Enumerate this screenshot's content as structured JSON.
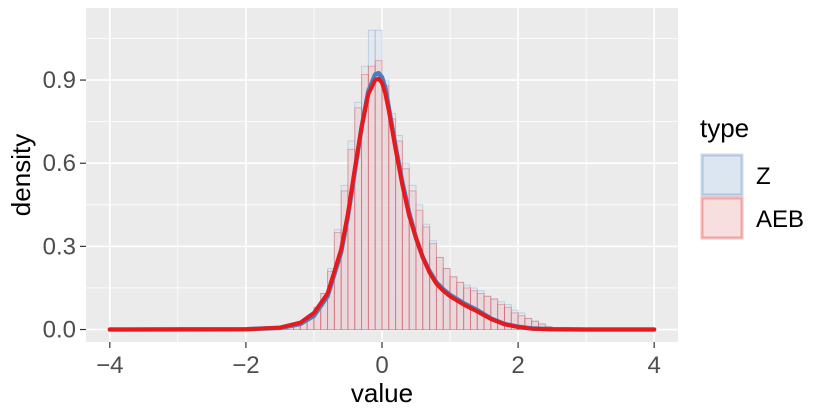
{
  "chart_data": {
    "type": "area",
    "title": "",
    "xlabel": "value",
    "ylabel": "density",
    "xlim": [
      -4.35,
      4.35
    ],
    "ylim": [
      -0.045,
      1.16
    ],
    "x_ticks": [
      -4,
      -2,
      0,
      2,
      4
    ],
    "x_tick_labels": [
      "−4",
      "−2",
      "0",
      "2",
      "4"
    ],
    "y_ticks": [
      0.0,
      0.3,
      0.6,
      0.9
    ],
    "y_tick_labels": [
      "0.0",
      "0.3",
      "0.6",
      "0.9"
    ],
    "grid": true,
    "legend": {
      "title": "type",
      "position": "right",
      "entries": [
        "Z",
        "AEB"
      ]
    },
    "colors": {
      "panel_bg": "#ebebeb",
      "grid": "#ffffff",
      "z_line": "#4a7fbf",
      "z_fill": "#dce6f0",
      "aeb_line": "#e41a1c",
      "aeb_fill": "#f2c9c9"
    },
    "histogram": {
      "bin_width": 0.1,
      "x_start": -1.5,
      "series": [
        {
          "name": "Z",
          "values": [
            0.005,
            0.01,
            0.015,
            0.03,
            0.05,
            0.08,
            0.13,
            0.22,
            0.36,
            0.52,
            0.68,
            0.82,
            0.95,
            1.08,
            1.08,
            0.9,
            0.78,
            0.7,
            0.6,
            0.52,
            0.45,
            0.38,
            0.32,
            0.26,
            0.22,
            0.19,
            0.17,
            0.16,
            0.15,
            0.14,
            0.12,
            0.11,
            0.1,
            0.09,
            0.07,
            0.06,
            0.04,
            0.03,
            0.02,
            0.01
          ]
        },
        {
          "name": "AEB",
          "values": [
            0.005,
            0.01,
            0.02,
            0.03,
            0.05,
            0.08,
            0.13,
            0.21,
            0.35,
            0.5,
            0.65,
            0.8,
            0.92,
            0.95,
            0.97,
            0.88,
            0.76,
            0.68,
            0.58,
            0.5,
            0.43,
            0.37,
            0.31,
            0.26,
            0.22,
            0.19,
            0.17,
            0.15,
            0.14,
            0.13,
            0.12,
            0.11,
            0.09,
            0.08,
            0.06,
            0.05,
            0.04,
            0.03,
            0.02,
            0.01
          ]
        }
      ]
    },
    "density": {
      "x": [
        -4,
        -2,
        -1.5,
        -1.2,
        -1.0,
        -0.8,
        -0.6,
        -0.5,
        -0.4,
        -0.3,
        -0.2,
        -0.1,
        -0.05,
        0,
        0.05,
        0.1,
        0.2,
        0.3,
        0.4,
        0.5,
        0.6,
        0.7,
        0.8,
        0.9,
        1.0,
        1.1,
        1.2,
        1.4,
        1.6,
        1.8,
        2.0,
        2.2,
        2.5,
        3,
        4
      ],
      "series": [
        {
          "name": "Z",
          "values": [
            0,
            0.001,
            0.006,
            0.02,
            0.05,
            0.12,
            0.28,
            0.41,
            0.57,
            0.73,
            0.86,
            0.92,
            0.925,
            0.91,
            0.87,
            0.8,
            0.66,
            0.53,
            0.42,
            0.33,
            0.26,
            0.21,
            0.17,
            0.145,
            0.125,
            0.11,
            0.095,
            0.07,
            0.04,
            0.02,
            0.01,
            0.004,
            0.001,
            0,
            0
          ]
        },
        {
          "name": "AEB",
          "values": [
            0,
            0.001,
            0.007,
            0.025,
            0.06,
            0.13,
            0.29,
            0.42,
            0.58,
            0.73,
            0.85,
            0.9,
            0.905,
            0.89,
            0.85,
            0.79,
            0.65,
            0.52,
            0.41,
            0.33,
            0.26,
            0.205,
            0.165,
            0.14,
            0.12,
            0.105,
            0.09,
            0.065,
            0.038,
            0.019,
            0.009,
            0.003,
            0.001,
            0,
            0
          ]
        }
      ]
    }
  }
}
